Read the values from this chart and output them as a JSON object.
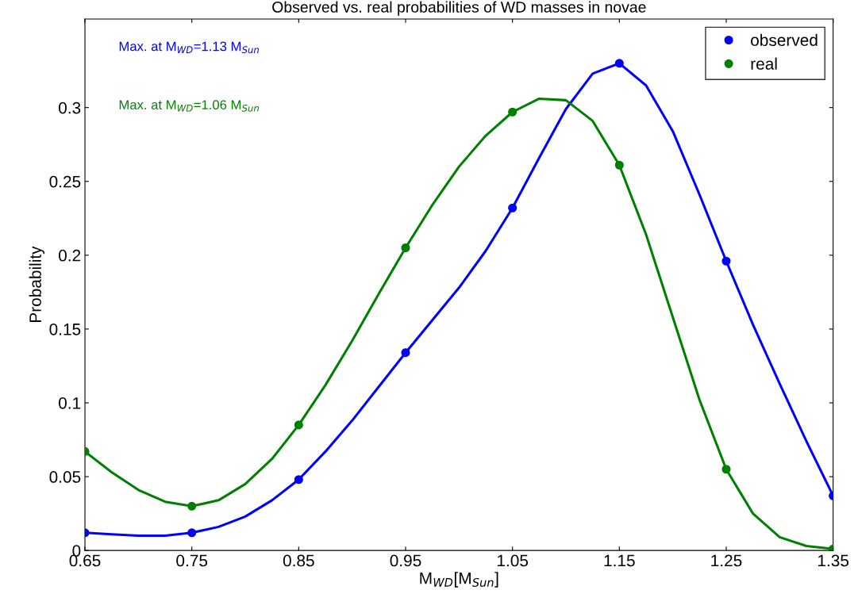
{
  "chart_data": {
    "type": "scatter",
    "title": "Observed vs. real probabilities of WD masses in novae",
    "xlabel": "M$_{WD}$[M$_{Sun}$]",
    "ylabel": "Probability",
    "x": [
      0.65,
      0.75,
      0.85,
      0.95,
      1.05,
      1.15,
      1.25,
      1.35
    ],
    "series": [
      {
        "type": "line",
        "marker": "none",
        "color": "#0000ff",
        "x": [
          0.65,
          0.675,
          0.7,
          0.725,
          0.75,
          0.775,
          0.8,
          0.825,
          0.85,
          0.875,
          0.9,
          0.925,
          0.95,
          0.975,
          1.0,
          1.025,
          1.05,
          1.075,
          1.1,
          1.125,
          1.15,
          1.175,
          1.2,
          1.225,
          1.25,
          1.275,
          1.3,
          1.325,
          1.35
        ],
        "values": [
          0.012,
          0.011,
          0.01,
          0.01,
          0.012,
          0.016,
          0.023,
          0.034,
          0.048,
          0.067,
          0.088,
          0.111,
          0.134,
          0.156,
          0.178,
          0.203,
          0.232,
          0.266,
          0.299,
          0.323,
          0.33,
          0.315,
          0.284,
          0.241,
          0.196,
          0.153,
          0.113,
          0.074,
          0.037
        ]
      },
      {
        "type": "line",
        "marker": "none",
        "color": "#008000",
        "x": [
          0.65,
          0.675,
          0.7,
          0.725,
          0.75,
          0.775,
          0.8,
          0.825,
          0.85,
          0.875,
          0.9,
          0.925,
          0.95,
          0.975,
          1.0,
          1.025,
          1.05,
          1.075,
          1.1,
          1.125,
          1.15,
          1.175,
          1.2,
          1.225,
          1.25,
          1.275,
          1.3,
          1.325,
          1.35
        ],
        "values": [
          0.067,
          0.053,
          0.041,
          0.033,
          0.03,
          0.034,
          0.045,
          0.062,
          0.085,
          0.112,
          0.142,
          0.174,
          0.205,
          0.234,
          0.26,
          0.281,
          0.297,
          0.306,
          0.305,
          0.291,
          0.261,
          0.214,
          0.158,
          0.102,
          0.055,
          0.025,
          0.009,
          0.003,
          0.001
        ]
      },
      {
        "name": "observed",
        "color": "#0000ff",
        "values": [
          0.012,
          0.012,
          0.048,
          0.134,
          0.232,
          0.33,
          0.196,
          0.037
        ]
      },
      {
        "name": "real",
        "color": "#008000",
        "values": [
          0.067,
          0.03,
          0.085,
          0.205,
          0.297,
          0.261,
          0.055,
          0.001
        ]
      }
    ],
    "annotations": [
      "Max. at M$_{WD}$=1.13 M$_{Sun}$",
      "Max. at M$_{WD}$=1.06 M$_{Sun}$"
    ],
    "xlim": [
      0.65,
      1.35
    ],
    "xticks": [
      0.65,
      0.75,
      0.85,
      0.95,
      1.05,
      1.15,
      1.25,
      1.35
    ],
    "ylim": [
      0,
      0.36
    ],
    "yticks": [
      0,
      0.05,
      0.1,
      0.15,
      0.2,
      0.25,
      0.3
    ],
    "grid": false,
    "legend": "top right",
    "marker": "circle",
    "line_style": "solid"
  }
}
